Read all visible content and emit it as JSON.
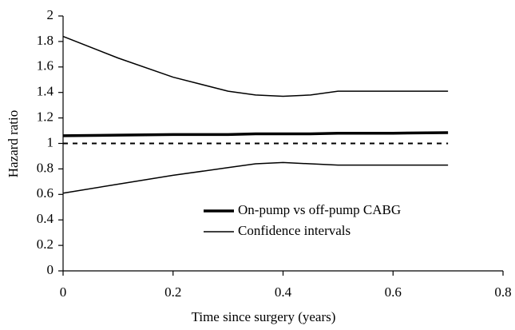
{
  "chart_data": {
    "type": "line",
    "x_label": "Time since surgery (years)",
    "y_label": "Hazard ratio",
    "x": [
      0,
      0.1,
      0.2,
      0.3,
      0.35,
      0.4,
      0.45,
      0.5,
      0.6,
      0.7
    ],
    "series": [
      {
        "name": "On-pump vs off-pump CABG",
        "color": "#000000",
        "width": 3.5,
        "values": [
          1.06,
          1.065,
          1.07,
          1.07,
          1.075,
          1.075,
          1.075,
          1.08,
          1.08,
          1.085
        ]
      },
      {
        "name": "Confidence intervals",
        "color": "#000000",
        "width": 1.5,
        "values": [
          1.84,
          1.67,
          1.52,
          1.41,
          1.38,
          1.37,
          1.38,
          1.41,
          1.41,
          1.41
        ]
      },
      {
        "color": "#000000",
        "width": 1.5,
        "values": [
          0.61,
          0.68,
          0.75,
          0.81,
          0.84,
          0.85,
          0.84,
          0.83,
          0.83,
          0.83
        ]
      }
    ],
    "reference_line": 1,
    "xlim": [
      0,
      0.8
    ],
    "xticks": [
      0,
      0.2,
      0.4,
      0.6,
      0.8
    ],
    "ylim": [
      0,
      2
    ],
    "yticks": [
      0,
      0.2,
      0.4,
      0.6,
      0.8,
      1,
      1.2,
      1.4,
      1.6,
      1.8,
      2
    ],
    "legend": "lower-center",
    "grid": false
  }
}
